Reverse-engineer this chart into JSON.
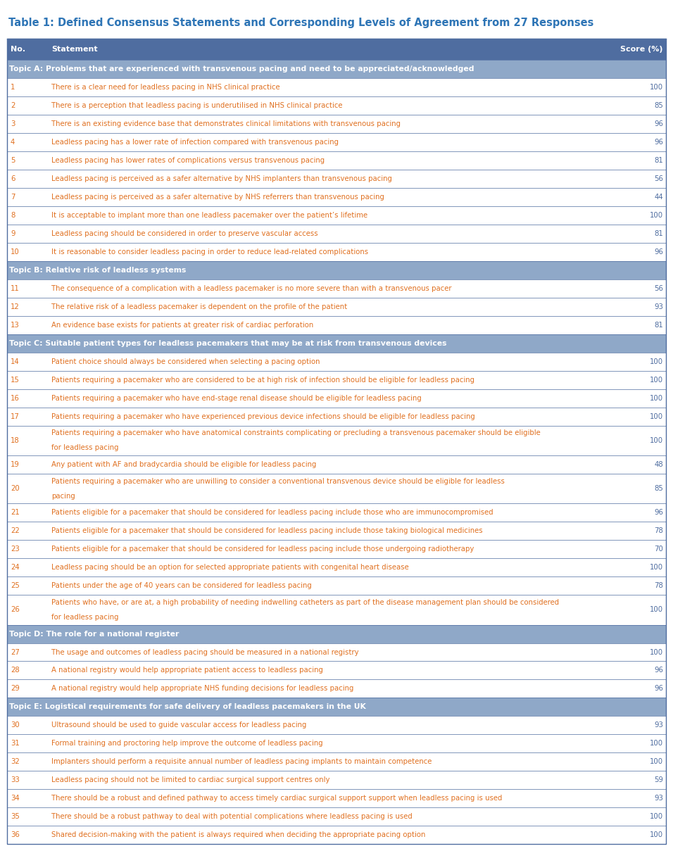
{
  "title": "Table 1: Defined Consensus Statements and Corresponding Levels of Agreement from 27 Responses",
  "title_color": "#2E75B6",
  "header_bg": "#4F6DA0",
  "header_text_color": "#FFFFFF",
  "topic_bg": "#8FA8C8",
  "topic_text_color": "#FFFFFF",
  "row_text_color": "#E07020",
  "score_color": "#4F6DA0",
  "border_color": "#4F6DA0",
  "rows": [
    {
      "type": "header",
      "no": "No.",
      "statement": "Statement",
      "score": "Score (%)"
    },
    {
      "type": "topic",
      "no": "",
      "statement": "Topic A: Problems that are experienced with transvenous pacing and need to be appreciated/acknowledged",
      "score": ""
    },
    {
      "type": "data",
      "no": "1",
      "statement": "There is a clear need for leadless pacing in NHS clinical practice",
      "score": "100"
    },
    {
      "type": "data",
      "no": "2",
      "statement": "There is a perception that leadless pacing is underutilised in NHS clinical practice",
      "score": "85"
    },
    {
      "type": "data",
      "no": "3",
      "statement": "There is an existing evidence base that demonstrates clinical limitations with transvenous pacing",
      "score": "96"
    },
    {
      "type": "data",
      "no": "4",
      "statement": "Leadless pacing has a lower rate of infection compared with transvenous pacing",
      "score": "96"
    },
    {
      "type": "data",
      "no": "5",
      "statement": "Leadless pacing has lower rates of complications versus transvenous pacing",
      "score": "81"
    },
    {
      "type": "data",
      "no": "6",
      "statement": "Leadless pacing is perceived as a safer alternative by NHS implanters than transvenous pacing",
      "score": "56"
    },
    {
      "type": "data",
      "no": "7",
      "statement": "Leadless pacing is perceived as a safer alternative by NHS referrers than transvenous pacing",
      "score": "44"
    },
    {
      "type": "data",
      "no": "8",
      "statement": "It is acceptable to implant more than one leadless pacemaker over the patient’s lifetime",
      "score": "100"
    },
    {
      "type": "data",
      "no": "9",
      "statement": "Leadless pacing should be considered in order to preserve vascular access",
      "score": "81"
    },
    {
      "type": "data",
      "no": "10",
      "statement": "It is reasonable to consider leadless pacing in order to reduce lead-related complications",
      "score": "96"
    },
    {
      "type": "topic",
      "no": "",
      "statement": "Topic B: Relative risk of leadless systems",
      "score": ""
    },
    {
      "type": "data",
      "no": "11",
      "statement": "The consequence of a complication with a leadless pacemaker is no more severe than with a transvenous pacer",
      "score": "56"
    },
    {
      "type": "data",
      "no": "12",
      "statement": "The relative risk of a leadless pacemaker is dependent on the profile of the patient",
      "score": "93"
    },
    {
      "type": "data",
      "no": "13",
      "statement": "An evidence base exists for patients at greater risk of cardiac perforation",
      "score": "81"
    },
    {
      "type": "topic",
      "no": "",
      "statement": "Topic C: Suitable patient types for leadless pacemakers that may be at risk from transvenous devices",
      "score": ""
    },
    {
      "type": "data",
      "no": "14",
      "statement": "Patient choice should always be considered when selecting a pacing option",
      "score": "100"
    },
    {
      "type": "data",
      "no": "15",
      "statement": "Patients requiring a pacemaker who are considered to be at high risk of infection should be eligible for leadless pacing",
      "score": "100"
    },
    {
      "type": "data",
      "no": "16",
      "statement": "Patients requiring a pacemaker who have end-stage renal disease should be eligible for leadless pacing",
      "score": "100"
    },
    {
      "type": "data",
      "no": "17",
      "statement": "Patients requiring a pacemaker who have experienced previous device infections should be eligible for leadless pacing",
      "score": "100"
    },
    {
      "type": "data2",
      "no": "18",
      "statement": "Patients requiring a pacemaker who have anatomical constraints complicating or precluding a transvenous pacemaker should be eligible\nfor leadless pacing",
      "score": "100"
    },
    {
      "type": "data",
      "no": "19",
      "statement": "Any patient with AF and bradycardia should be eligible for leadless pacing",
      "score": "48"
    },
    {
      "type": "data2",
      "no": "20",
      "statement": "Patients requiring a pacemaker who are unwilling to consider a conventional transvenous device should be eligible for leadless\npacing",
      "score": "85"
    },
    {
      "type": "data",
      "no": "21",
      "statement": "Patients eligible for a pacemaker that should be considered for leadless pacing include those who are immunocompromised",
      "score": "96"
    },
    {
      "type": "data",
      "no": "22",
      "statement": "Patients eligible for a pacemaker that should be considered for leadless pacing include those taking biological medicines",
      "score": "78"
    },
    {
      "type": "data",
      "no": "23",
      "statement": "Patients eligible for a pacemaker that should be considered for leadless pacing include those undergoing radiotherapy",
      "score": "70"
    },
    {
      "type": "data",
      "no": "24",
      "statement": "Leadless pacing should be an option for selected appropriate patients with congenital heart disease",
      "score": "100"
    },
    {
      "type": "data",
      "no": "25",
      "statement": "Patients under the age of 40 years can be considered for leadless pacing",
      "score": "78"
    },
    {
      "type": "data2",
      "no": "26",
      "statement": "Patients who have, or are at, a high probability of needing indwelling catheters as part of the disease management plan should be considered\nfor leadless pacing",
      "score": "100"
    },
    {
      "type": "topic",
      "no": "",
      "statement": "Topic D: The role for a national register",
      "score": ""
    },
    {
      "type": "data",
      "no": "27",
      "statement": "The usage and outcomes of leadless pacing should be measured in a national registry",
      "score": "100"
    },
    {
      "type": "data",
      "no": "28",
      "statement": "A national registry would help appropriate patient access to leadless pacing",
      "score": "96"
    },
    {
      "type": "data",
      "no": "29",
      "statement": "A national registry would help appropriate NHS funding decisions for leadless pacing",
      "score": "96"
    },
    {
      "type": "topic",
      "no": "",
      "statement": "Topic E: Logistical requirements for safe delivery of leadless pacemakers in the UK",
      "score": ""
    },
    {
      "type": "data",
      "no": "30",
      "statement": "Ultrasound should be used to guide vascular access for leadless pacing",
      "score": "93"
    },
    {
      "type": "data",
      "no": "31",
      "statement": "Formal training and proctoring help improve the outcome of leadless pacing",
      "score": "100"
    },
    {
      "type": "data",
      "no": "32",
      "statement": "Implanters should perform a requisite annual number of leadless pacing implants to maintain competence",
      "score": "100"
    },
    {
      "type": "data",
      "no": "33",
      "statement": "Leadless pacing should not be limited to cardiac surgical support centres only",
      "score": "59"
    },
    {
      "type": "data",
      "no": "34",
      "statement": "There should be a robust and defined pathway to access timely cardiac surgical support support when leadless pacing is used",
      "score": "93"
    },
    {
      "type": "data",
      "no": "35",
      "statement": "There should be a robust pathway to deal with potential complications where leadless pacing is used",
      "score": "100"
    },
    {
      "type": "data",
      "no": "36",
      "statement": "Shared decision-making with the patient is always required when deciding the appropriate pacing option",
      "score": "100"
    }
  ]
}
